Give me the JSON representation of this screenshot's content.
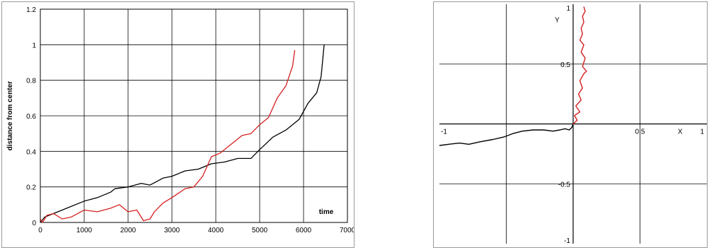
{
  "chart_data": [
    {
      "type": "line",
      "title": "",
      "xlabel": "time",
      "ylabel": "distance from center",
      "xlim": [
        0,
        7000
      ],
      "ylim": [
        0,
        1.2
      ],
      "x_ticks": [
        "0",
        "1000",
        "2000",
        "3000",
        "4000",
        "5000",
        "6000",
        "7000"
      ],
      "y_ticks": [
        "0",
        "0.2",
        "0.4",
        "0.6",
        "0.8",
        "1",
        "1.2"
      ],
      "grid": true,
      "series": [
        {
          "color": "#000000",
          "x": [
            0,
            100,
            300,
            600,
            900,
            1000,
            1300,
            1600,
            1700,
            2000,
            2300,
            2500,
            2800,
            3000,
            3300,
            3600,
            3900,
            4200,
            4500,
            4800,
            5000,
            5300,
            5600,
            5900,
            6100,
            6300,
            6400,
            6470
          ],
          "y": [
            0.0,
            0.03,
            0.05,
            0.08,
            0.11,
            0.12,
            0.14,
            0.17,
            0.19,
            0.2,
            0.22,
            0.21,
            0.25,
            0.26,
            0.29,
            0.3,
            0.33,
            0.34,
            0.36,
            0.36,
            0.41,
            0.48,
            0.52,
            0.58,
            0.67,
            0.73,
            0.82,
            1.0
          ]
        },
        {
          "color": "#d42020",
          "x": [
            0,
            50,
            150,
            300,
            500,
            700,
            1000,
            1300,
            1600,
            1800,
            2000,
            2200,
            2350,
            2500,
            2600,
            2800,
            3000,
            3300,
            3500,
            3700,
            3900,
            4100,
            4300,
            4600,
            4800,
            5000,
            5200,
            5400,
            5600,
            5750,
            5800
          ],
          "y": [
            0.02,
            0.0,
            0.04,
            0.05,
            0.02,
            0.03,
            0.07,
            0.06,
            0.08,
            0.1,
            0.06,
            0.07,
            0.01,
            0.02,
            0.06,
            0.11,
            0.14,
            0.19,
            0.2,
            0.26,
            0.37,
            0.39,
            0.43,
            0.49,
            0.5,
            0.55,
            0.59,
            0.7,
            0.77,
            0.88,
            0.97
          ]
        }
      ]
    },
    {
      "type": "line",
      "title": "",
      "xlabel": "X",
      "ylabel": "Y",
      "xlim": [
        -1,
        1
      ],
      "ylim": [
        -1,
        1
      ],
      "x_ticks": [
        "-1",
        "0.5",
        "1"
      ],
      "y_ticks": [
        "1",
        "0.5",
        "-0.5",
        "-1"
      ],
      "grid": true,
      "series": [
        {
          "color": "#000000",
          "x": [
            -1.0,
            -0.93,
            -0.85,
            -0.78,
            -0.7,
            -0.6,
            -0.52,
            -0.45,
            -0.38,
            -0.3,
            -0.22,
            -0.15,
            -0.1,
            -0.06,
            -0.03,
            -0.01,
            0.0
          ],
          "y": [
            -0.18,
            -0.17,
            -0.16,
            -0.17,
            -0.15,
            -0.13,
            -0.11,
            -0.08,
            -0.06,
            -0.05,
            -0.05,
            -0.06,
            -0.05,
            -0.04,
            -0.05,
            -0.03,
            0.0
          ]
        },
        {
          "color": "#d42020",
          "x": [
            0.0,
            0.03,
            0.01,
            0.05,
            0.02,
            0.06,
            0.04,
            0.07,
            0.05,
            0.08,
            0.1,
            0.07,
            0.09,
            0.06,
            0.08,
            0.05,
            0.07,
            0.06,
            0.08,
            0.07,
            0.09,
            0.08
          ],
          "y": [
            0.0,
            0.03,
            0.07,
            0.1,
            0.15,
            0.2,
            0.25,
            0.3,
            0.36,
            0.42,
            0.44,
            0.48,
            0.55,
            0.6,
            0.66,
            0.7,
            0.75,
            0.8,
            0.85,
            0.9,
            0.94,
            0.98
          ]
        }
      ]
    }
  ]
}
